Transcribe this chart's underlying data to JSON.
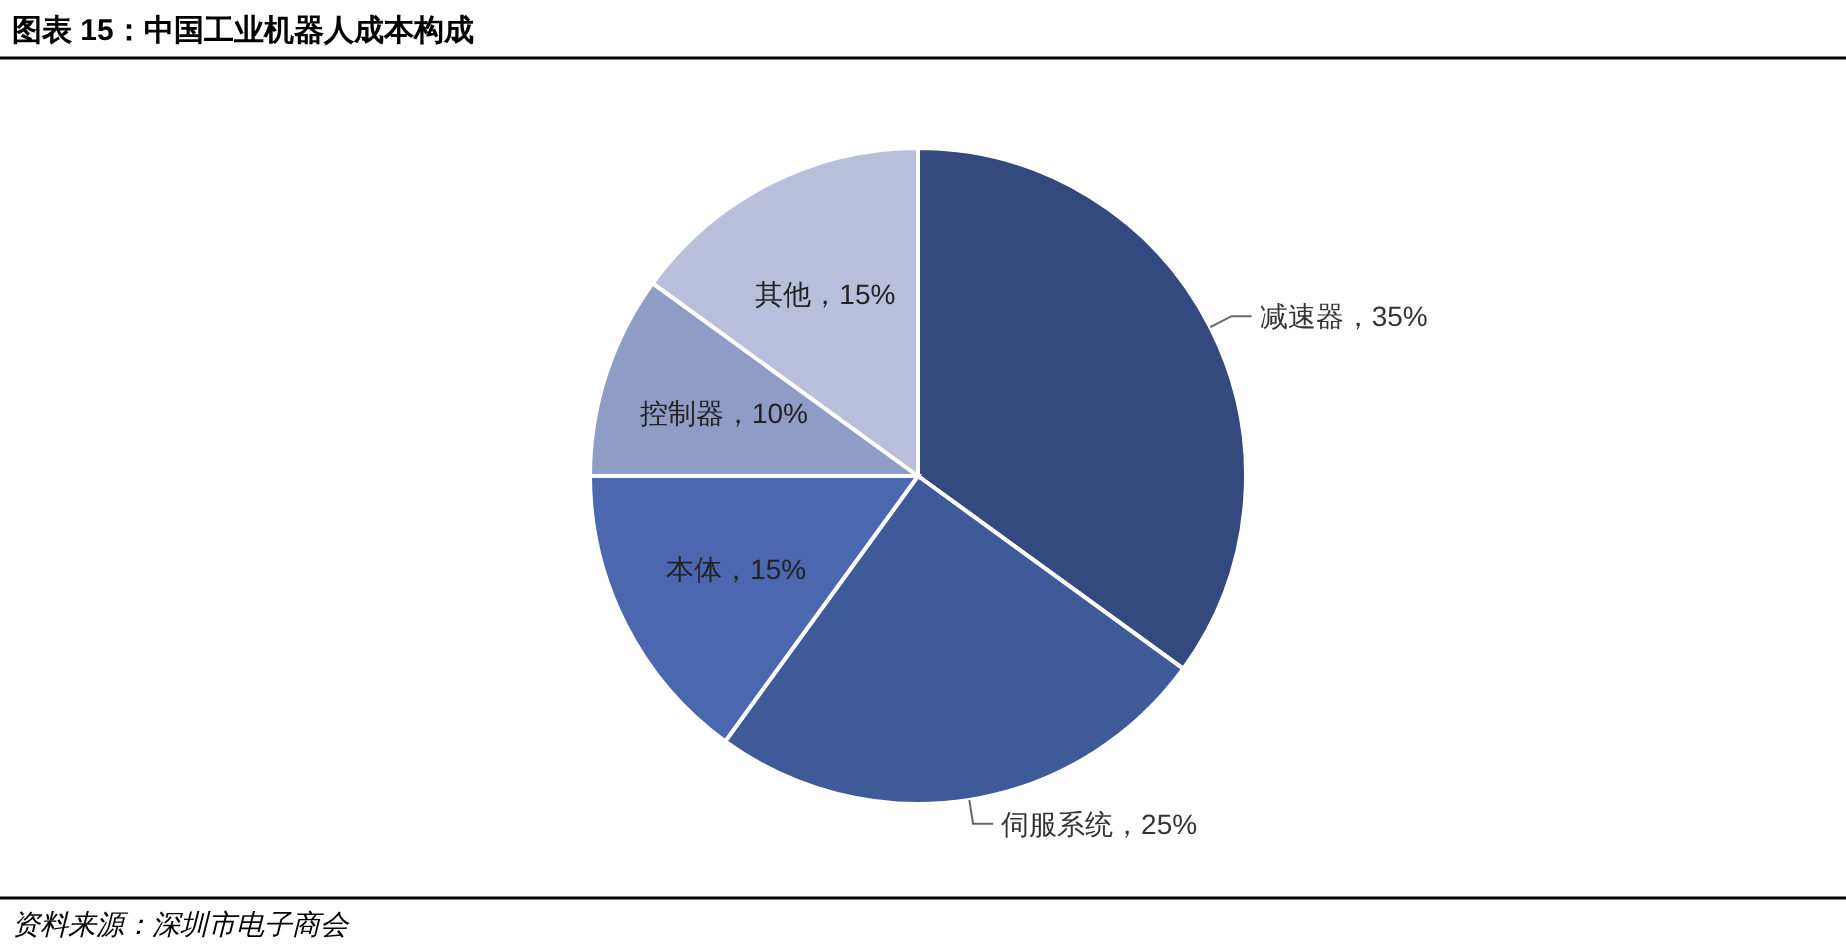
{
  "chart_data": {
    "type": "pie",
    "title": "图表 15：中国工业机器人成本构成",
    "categories": [
      "减速器",
      "伺服系统",
      "本体",
      "控制器",
      "其他"
    ],
    "values": [
      35,
      25,
      15,
      10,
      15
    ],
    "colors": [
      "#344a7f",
      "#3f5a98",
      "#4a67b0",
      "#8f9cc6",
      "#b9bfdb"
    ],
    "value_labels": [
      "，35%",
      "，25%",
      "，15%",
      "，10%",
      "，15%"
    ],
    "annotations": [
      "资料来源：深圳市电子商会"
    ]
  }
}
